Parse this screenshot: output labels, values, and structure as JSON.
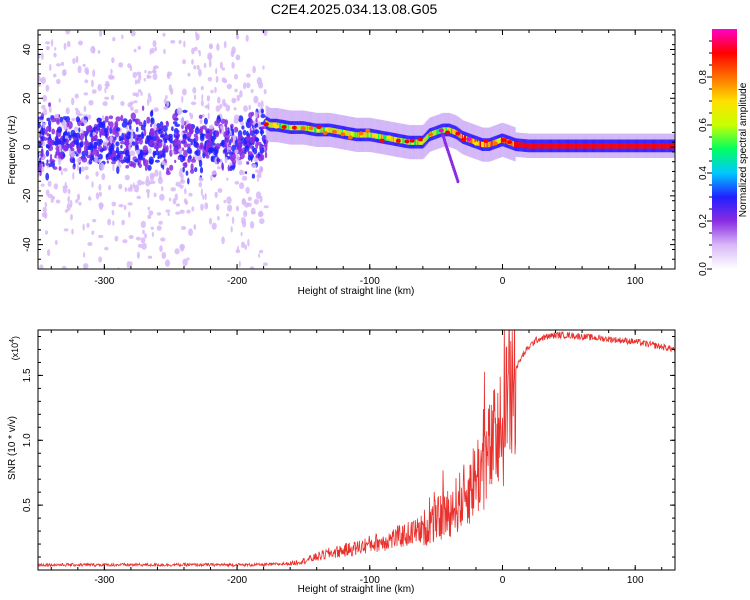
{
  "figure": {
    "title": "C2E4.2025.034.13.08.G05"
  },
  "chart_data": [
    {
      "type": "heatmap",
      "xlabel": "Height of straight line (km)",
      "ylabel": "Frequency (Hz)",
      "xlim": [
        -350,
        130
      ],
      "ylim": [
        -50,
        48
      ],
      "xticks": [
        -300,
        -200,
        -100,
        0,
        100
      ],
      "yticks": [
        -40,
        -20,
        0,
        20,
        40
      ],
      "colorbar": {
        "label": "Normalized spectral amplitude",
        "range": [
          0,
          1
        ],
        "ticks": [
          0.0,
          0.2,
          0.4,
          0.6,
          0.8
        ],
        "tick_labels": [
          "0.0",
          "0.2",
          "0.4",
          "0.6",
          "0.8"
        ],
        "colors": [
          "#ffffff",
          "#d8b8f8",
          "#8a2be2",
          "#2020ff",
          "#00c8ff",
          "#00ff60",
          "#c8ff00",
          "#ffe000",
          "#ff7000",
          "#ff0000",
          "#ff00c8"
        ]
      },
      "ridge": {
        "x": [
          -178,
          -175,
          -170,
          -160,
          -150,
          -140,
          -130,
          -120,
          -110,
          -100,
          -90,
          -80,
          -70,
          -60,
          -55,
          -50,
          -45,
          -40,
          -35,
          -30,
          -25,
          -20,
          -15,
          -10,
          -5,
          0,
          5,
          10,
          20,
          40,
          60,
          80,
          100,
          130
        ],
        "freq": [
          10,
          9,
          9,
          8,
          8,
          7,
          7,
          6,
          5,
          5,
          4,
          3,
          2,
          2,
          5,
          6,
          7,
          7,
          6,
          4,
          3,
          2,
          1,
          1,
          2,
          3,
          2,
          1,
          0.5,
          0.5,
          0.5,
          0.5,
          0.5,
          0.5
        ]
      },
      "noise_region": {
        "x": [
          -350,
          -178
        ],
        "freq_center": 2,
        "freq_spread": 8
      }
    },
    {
      "type": "line",
      "xlabel": "Height of straight line (km)",
      "ylabel": "SNR (10 * v/v)",
      "y_multiplier": "(x10",
      "y_multiplier_exp": "4",
      "y_multiplier_close": ")",
      "xlim": [
        -350,
        130
      ],
      "ylim": [
        0,
        1.85
      ],
      "xticks": [
        -300,
        -200,
        -100,
        0,
        100
      ],
      "yticks": [
        0.5,
        1.0,
        1.5
      ],
      "ytick_labels": [
        "0.5",
        "1.0",
        "1.5"
      ],
      "color": "#e8302c",
      "series": [
        {
          "x": [
            -350,
            -300,
            -250,
            -200,
            -180,
            -160,
            -150,
            -140,
            -130,
            -120,
            -110,
            -100,
            -90,
            -80,
            -70,
            -60,
            -50,
            -40,
            -30,
            -25,
            -20,
            -15,
            -10,
            -5,
            0,
            5,
            10,
            15,
            20,
            25,
            30,
            35,
            40,
            50,
            60,
            70,
            80,
            90,
            100,
            110,
            120,
            130
          ],
          "y": [
            0.04,
            0.04,
            0.04,
            0.04,
            0.04,
            0.05,
            0.07,
            0.1,
            0.13,
            0.15,
            0.17,
            0.2,
            0.22,
            0.25,
            0.28,
            0.32,
            0.38,
            0.45,
            0.55,
            0.62,
            0.72,
            0.8,
            0.9,
            1.0,
            1.1,
            1.35,
            1.55,
            1.65,
            1.72,
            1.77,
            1.79,
            1.8,
            1.81,
            1.81,
            1.8,
            1.79,
            1.78,
            1.77,
            1.76,
            1.74,
            1.72,
            1.7
          ]
        }
      ]
    }
  ]
}
